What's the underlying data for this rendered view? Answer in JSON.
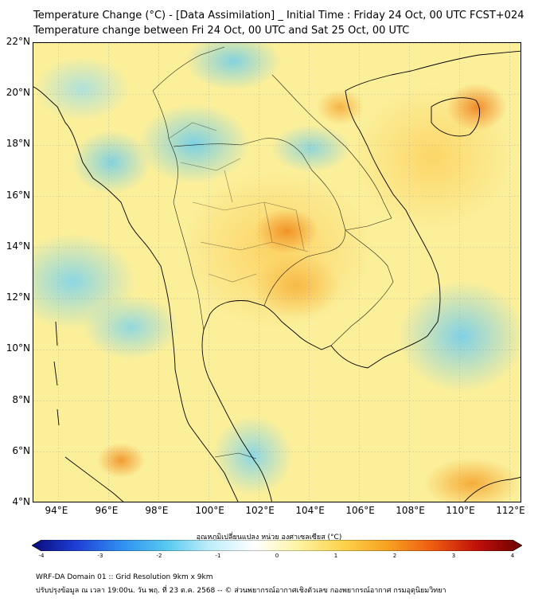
{
  "header": {
    "title": "Temperature Change (°C) - [Data Assimilation] _ Initial Time : Friday 24 Oct, 00 UTC FCST+024",
    "subtitle": "Temperature change between Fri 24 Oct, 00 UTC and Sat 25 Oct, 00 UTC"
  },
  "map": {
    "lat_labels": [
      "22°N",
      "20°N",
      "18°N",
      "16°N",
      "14°N",
      "12°N",
      "10°N",
      "8°N",
      "6°N",
      "4°N"
    ],
    "lon_labels": [
      "94°E",
      "96°E",
      "98°E",
      "100°E",
      "102°E",
      "104°E",
      "106°E",
      "108°E",
      "110°E",
      "112°E"
    ],
    "lat_range": [
      4,
      22
    ],
    "lon_range": [
      93,
      112.5
    ],
    "grid": true
  },
  "colorbar": {
    "title": "อุณหภูมิเปลี่ยนแปลง หน่วย องศาเซลเซียส (°C)",
    "ticks": [
      "-4",
      "-3",
      "-2",
      "-1",
      "0",
      "1",
      "2",
      "3",
      "4"
    ],
    "range": [
      -4,
      4
    ],
    "colors": [
      "#0a0a7a",
      "#1f3fd6",
      "#2f8ef0",
      "#55c8f0",
      "#bfeefa",
      "#ffffff",
      "#fdf3a0",
      "#fcd24a",
      "#f7a020",
      "#ee5a10",
      "#c0100a",
      "#6a0000"
    ]
  },
  "footer": {
    "line1": "WRF-DA Domain 01 :: Grid Resolution 9km x 9km",
    "line2": "ปรับปรุงข้อมูล ณ เวลา 19:00น. วัน พฤ. ที่ 23 ต.ค. 2568 -- © ส่วนพยากรณ์อากาศเชิงตัวเลข กองพยากรณ์อากาศ กรมอุตุนิยมวิทยา"
  }
}
